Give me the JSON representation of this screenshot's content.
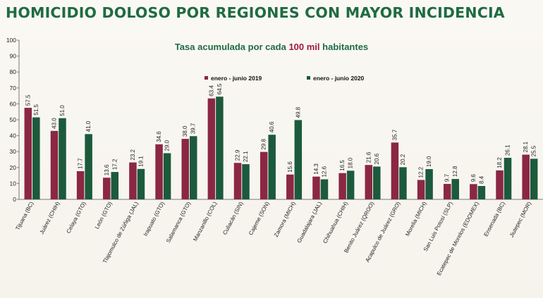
{
  "page": {
    "title": "HOMICIDIO DOLOSO POR REGIONES CON MAYOR INCIDENCIA",
    "subtitle_pre": "Tasa acumulada por cada ",
    "subtitle_hl": "100 mil",
    "subtitle_post": " habitantes"
  },
  "colors": {
    "title": "#1f6b43",
    "subtitle": "#1f6b43",
    "highlight": "#a01a3c",
    "series_2019": "#8b2743",
    "series_2020": "#1c5a3c"
  },
  "chart_data": {
    "type": "bar",
    "title": "Tasa acumulada por cada 100 mil habitantes",
    "ylim": [
      0,
      100
    ],
    "yticks": [
      0,
      10,
      20,
      30,
      40,
      50,
      60,
      70,
      80,
      90,
      100
    ],
    "grid": false,
    "legend_position": "top-center",
    "categories": [
      "Tijuana (BC)",
      "Juárez (CHIH)",
      "Celaya (GTO)",
      "León (GTO)",
      "Tlajomulco de Zúñiga (JAL)",
      "Irapuato (GTO)",
      "Salamanca (GTO)",
      "Manzanillo (COL)",
      "Culiacán (SIN)",
      "Cajeme (SON)",
      "Zamora (MICH)",
      "Guadalajara (JAL)",
      "Chihuahua (CHIH)",
      "Benito Juárez (QROO)",
      "Acapulco de Juárez (GRO)",
      "Morelia (MICH)",
      "San Luis Potosí (SLP)",
      "Ecatepec de Morelos (EDOMEX)",
      "Ensenada (BC)",
      "Jiutepec (MOR)"
    ],
    "series": [
      {
        "name": "enero - junio 2019",
        "values": [
          57.5,
          43.0,
          17.7,
          13.6,
          23.2,
          34.6,
          38.0,
          63.4,
          22.9,
          29.8,
          15.6,
          14.3,
          16.5,
          21.6,
          35.7,
          12.2,
          9.7,
          9.6,
          18.2,
          28.1
        ]
      },
      {
        "name": "enero - junio 2020",
        "values": [
          51.5,
          51.0,
          41.0,
          17.2,
          19.1,
          29.0,
          39.7,
          64.5,
          22.1,
          40.6,
          49.8,
          12.6,
          18.0,
          20.6,
          20.2,
          19.0,
          12.8,
          8.4,
          26.1,
          25.5
        ]
      }
    ]
  }
}
